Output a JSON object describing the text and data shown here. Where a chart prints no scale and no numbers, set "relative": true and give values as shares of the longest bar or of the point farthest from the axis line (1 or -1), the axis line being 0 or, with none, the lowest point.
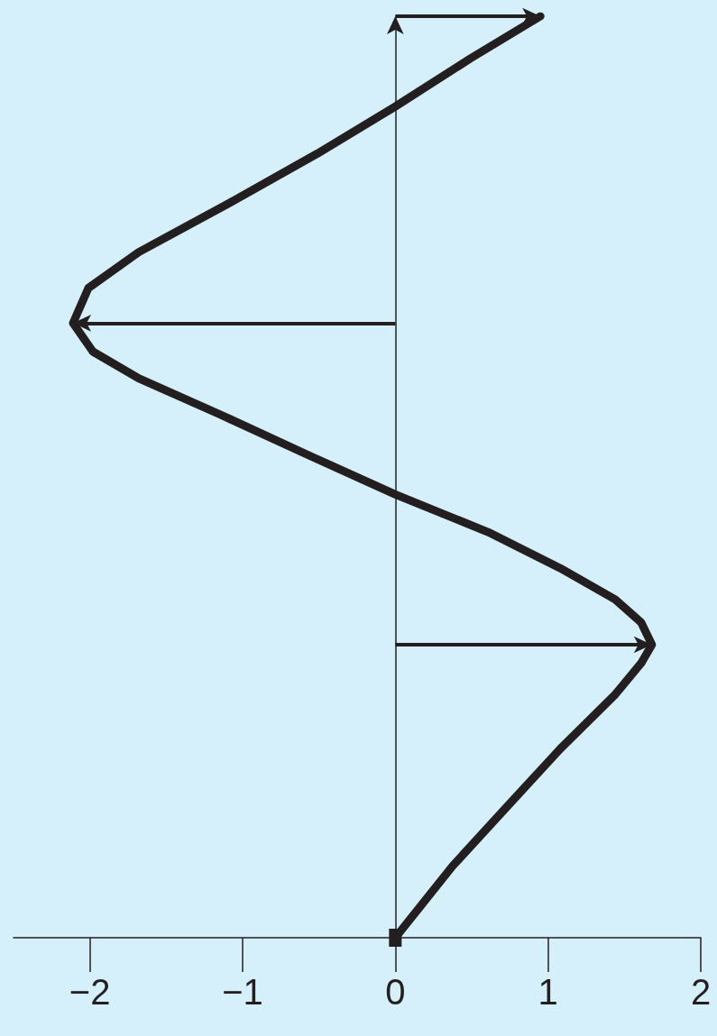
{
  "chart_data": {
    "type": "line",
    "relative": true,
    "marker": "none",
    "line_style": "solid",
    "tick_labels": "x",
    "xlim": [
      -2.5,
      2
    ],
    "xticks": [
      {
        "value": -2,
        "label": "−2"
      },
      {
        "value": -1,
        "label": "−1"
      },
      0,
      1,
      2
    ],
    "ref_lines": [
      {
        "axis": "x",
        "value": 0
      }
    ],
    "series": [
      {
        "color": "#231f20",
        "x": [
          0,
          0.376,
          0.73,
          1.08,
          1.44,
          1.61,
          1.68,
          1.61,
          1.44,
          1.08,
          0.61,
          0,
          -0.56,
          -1.15,
          -1.68,
          -1.98,
          -2.11,
          -2.01,
          -1.68,
          -1.09,
          -0.51,
          0,
          0.49,
          0.95
        ],
        "values": [
          0,
          0.078,
          0.142,
          0.205,
          0.264,
          0.298,
          0.318,
          0.342,
          0.367,
          0.401,
          0.44,
          0.481,
          0.523,
          0.568,
          0.607,
          0.636,
          0.667,
          0.705,
          0.744,
          0.797,
          0.851,
          0.902,
          0.954,
          1
        ]
      }
    ]
  }
}
